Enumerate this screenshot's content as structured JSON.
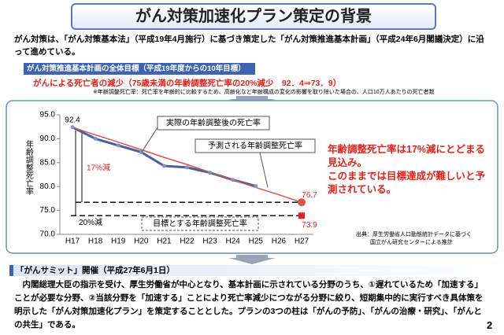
{
  "header": {
    "title": "がん対策加速化プラン策定の背景"
  },
  "intro": "がん対策は、「がん対策基本法」（平成19年4月施行）に基づき策定した「がん対策推進基本計画」（平成24年6月閣議決定）に沿って進めている。",
  "goal": {
    "heading": "がん対策推進基本計画の全体目標（平成19年度からの10年目標）",
    "text": "がんによる死亡者の減少（75歳未満の年齢調整死亡率の20%減少　92．4⇒73．9）",
    "note": "※年齢調整死亡率：死亡率を年齢的に比較するため、高齢化など年齢構成の変化の影響を取り除いた場合の、人口10万人あたりの死亡者数"
  },
  "chart_data": {
    "type": "line",
    "y_label": "年齢調整死亡率",
    "categories": [
      "H17",
      "H18",
      "H19",
      "H20",
      "H21",
      "H22",
      "H23",
      "H24",
      "H25",
      "H26",
      "H27"
    ],
    "series": [
      {
        "name": "実際の年齢調整後の死亡率",
        "color": "#4a5f9e",
        "values": [
          92.4,
          90.0,
          88.6,
          87.2,
          84.3,
          84.0,
          82.9,
          81.4,
          80.1,
          null,
          null
        ]
      },
      {
        "name": "予測される年齢調整死亡率",
        "color": "#d9534f",
        "values": [
          92.4,
          90.8,
          89.3,
          87.7,
          86.1,
          84.6,
          83.0,
          81.4,
          79.8,
          78.3,
          76.7
        ]
      },
      {
        "name": "目標とする年齢調整死亡率",
        "color": "#e8201a",
        "values": [
          null,
          null,
          null,
          null,
          null,
          null,
          null,
          null,
          null,
          null,
          73.9
        ]
      }
    ],
    "ylim": [
      70,
      95
    ],
    "yticks": [
      {
        "value": 70,
        "label": "70.0"
      },
      {
        "value": 75,
        "label": "75.0"
      },
      {
        "value": 80,
        "label": "80.0"
      },
      {
        "value": 85,
        "label": "85.0"
      },
      {
        "value": 90,
        "label": "90.0"
      },
      {
        "value": 95,
        "label": "95.0"
      }
    ],
    "annotations": [
      "17%減",
      "20%減"
    ]
  },
  "conclusion": [
    "年齢調整死亡率は17%減にとどまる見込み。",
    "このままでは目標達成が難しいと予測されている。"
  ],
  "source": [
    "出典：厚生労働省人口動態統計データに基づく",
    "国立がん研究センターによる推計"
  ],
  "summit": {
    "heading": "「がんサミット」開催（平成27年6月1日）",
    "text": "内閣総理大臣の指示を受け、厚生労働省が中心となり、基本計画に示されている分野のうち、①遅れているため「加速する」ことが必要な分野、②当該分野を「加速する」ことにより死亡率減少につながる分野に絞り、短期集中的に実行すべき具体策を明示した「がん対策加速化プラン」を策定することとした。プランの3つの柱は「がんの予防」、「がんの治療・研究」、「がんとの共生」である。"
  },
  "page_number": "2"
}
